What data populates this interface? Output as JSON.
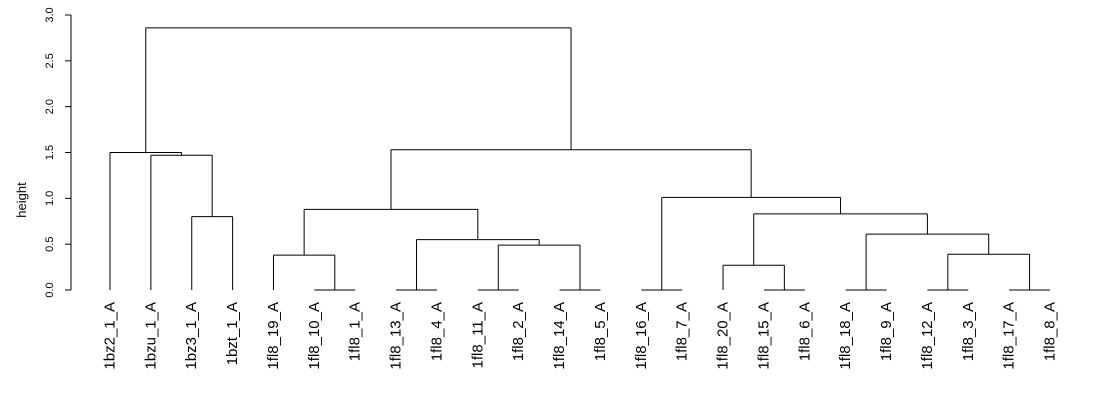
{
  "chart_data": {
    "type": "dendrogram",
    "ylabel": "height",
    "ylim": [
      0,
      3.0
    ],
    "yticks": [
      "0.0",
      "0.5",
      "1.0",
      "1.5",
      "2.0",
      "2.5",
      "3.0"
    ],
    "leaves": [
      "1bz2_1_A",
      "1bzu_1_A",
      "1bz3_1_A",
      "1bzt_1_A",
      "1fl8_19_A",
      "1fl8_10_A",
      "1fl8_1_A",
      "1fl8_13_A",
      "1fl8_4_A",
      "1fl8_11_A",
      "1fl8_2_A",
      "1fl8_14_A",
      "1fl8_5_A",
      "1fl8_16_A",
      "1fl8_7_A",
      "1fl8_20_A",
      "1fl8_15_A",
      "1fl8_6_A",
      "1fl8_18_A",
      "1fl8_9_A",
      "1fl8_12_A",
      "1fl8_3_A",
      "1fl8_17_A",
      "1fl8_8_A"
    ],
    "merges": [
      {
        "a": "1fl8_10_A",
        "b": "1fl8_1_A",
        "height": 0.0
      },
      {
        "a": "1fl8_13_A",
        "b": "1fl8_4_A",
        "height": 0.0
      },
      {
        "a": "1fl8_11_A",
        "b": "1fl8_2_A",
        "height": 0.0
      },
      {
        "a": "1fl8_14_A",
        "b": "1fl8_5_A",
        "height": 0.0
      },
      {
        "a": "1fl8_16_A",
        "b": "1fl8_7_A",
        "height": 0.0
      },
      {
        "a": "1fl8_15_A",
        "b": "1fl8_6_A",
        "height": 0.0
      },
      {
        "a": "1fl8_18_A",
        "b": "1fl8_9_A",
        "height": 0.0
      },
      {
        "a": "1fl8_12_A",
        "b": "1fl8_3_A",
        "height": 0.0
      },
      {
        "a": "1fl8_17_A",
        "b": "1fl8_8_A",
        "height": 0.0
      },
      {
        "a": "1fl8_20_A",
        "b": 5,
        "height": 0.27
      },
      {
        "a": 8,
        "b": 7,
        "height": 0.39
      },
      {
        "a": "1fl8_19_A",
        "b": 0,
        "height": 0.38
      },
      {
        "a": 2,
        "b": 3,
        "height": 0.49
      },
      {
        "a": 1,
        "b": 12,
        "height": 0.55
      },
      {
        "a": 6,
        "b": 10,
        "height": 0.61
      },
      {
        "a": "1bz3_1_A",
        "b": "1bzt_1_A",
        "height": 0.8
      },
      {
        "a": 9,
        "b": 14,
        "height": 0.83
      },
      {
        "a": 11,
        "b": 13,
        "height": 0.88
      },
      {
        "a": 4,
        "b": 16,
        "height": 1.01
      },
      {
        "a": "1bzu_1_A",
        "b": 15,
        "height": 1.47
      },
      {
        "a": "1bz2_1_A",
        "b": 19,
        "height": 1.5
      },
      {
        "a": 17,
        "b": 18,
        "height": 1.53
      },
      {
        "a": 20,
        "b": 21,
        "height": 2.86
      }
    ]
  }
}
